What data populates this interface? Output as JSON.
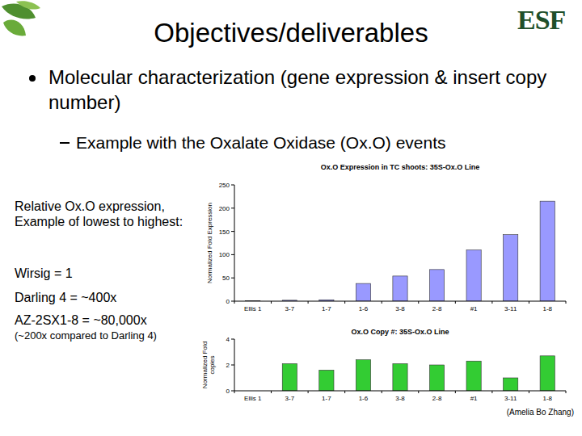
{
  "slide": {
    "title": "Objectives/deliverables",
    "logo": "ESF",
    "bullets": [
      {
        "text": "Molecular characterization (gene expression & insert copy number)",
        "sub": [
          "Example with the Oxalate Oxidase (Ox.O) events"
        ]
      }
    ],
    "notes": {
      "heading": "Relative Ox.O expression, Example of lowest to highest:",
      "items": [
        "Wirsig = 1",
        "Darling 4 = ~400x",
        "AZ-2SX1-8 = ~80,000x"
      ],
      "comment": "(~200x compared to Darling 4)"
    },
    "credit": "(Amelia Bo Zhang)"
  },
  "chart_data": [
    {
      "type": "bar",
      "title": "Ox.O Expression in TC shoots: 35S-Ox.O Line",
      "y_label": "Normalized Fold Expression",
      "categories": [
        "Ellis 1",
        "3-7",
        "1-7",
        "1-6",
        "3-8",
        "2-8",
        "#1",
        "3-11",
        "1-8"
      ],
      "values": [
        1,
        2,
        3,
        38,
        54,
        68,
        110,
        143,
        215
      ],
      "color": "#9999ff",
      "ylim": [
        0,
        250
      ],
      "yticks": [
        0,
        50,
        100,
        150,
        200,
        250
      ],
      "grid": false
    },
    {
      "type": "bar",
      "title": "Ox.O Copy #: 35S-Ox.O Line",
      "y_label": "Normalized Fold copies",
      "categories": [
        "Ellis 1",
        "3-7",
        "1-7",
        "1-6",
        "3-8",
        "2-8",
        "#1",
        "3-11",
        "1-8"
      ],
      "values": [
        0,
        2.1,
        1.6,
        2.4,
        2.1,
        2.0,
        2.3,
        1.0,
        2.7
      ],
      "color": "#33cc33",
      "ylim": [
        0,
        4
      ],
      "yticks": [
        0,
        2,
        4
      ],
      "grid": false
    }
  ]
}
